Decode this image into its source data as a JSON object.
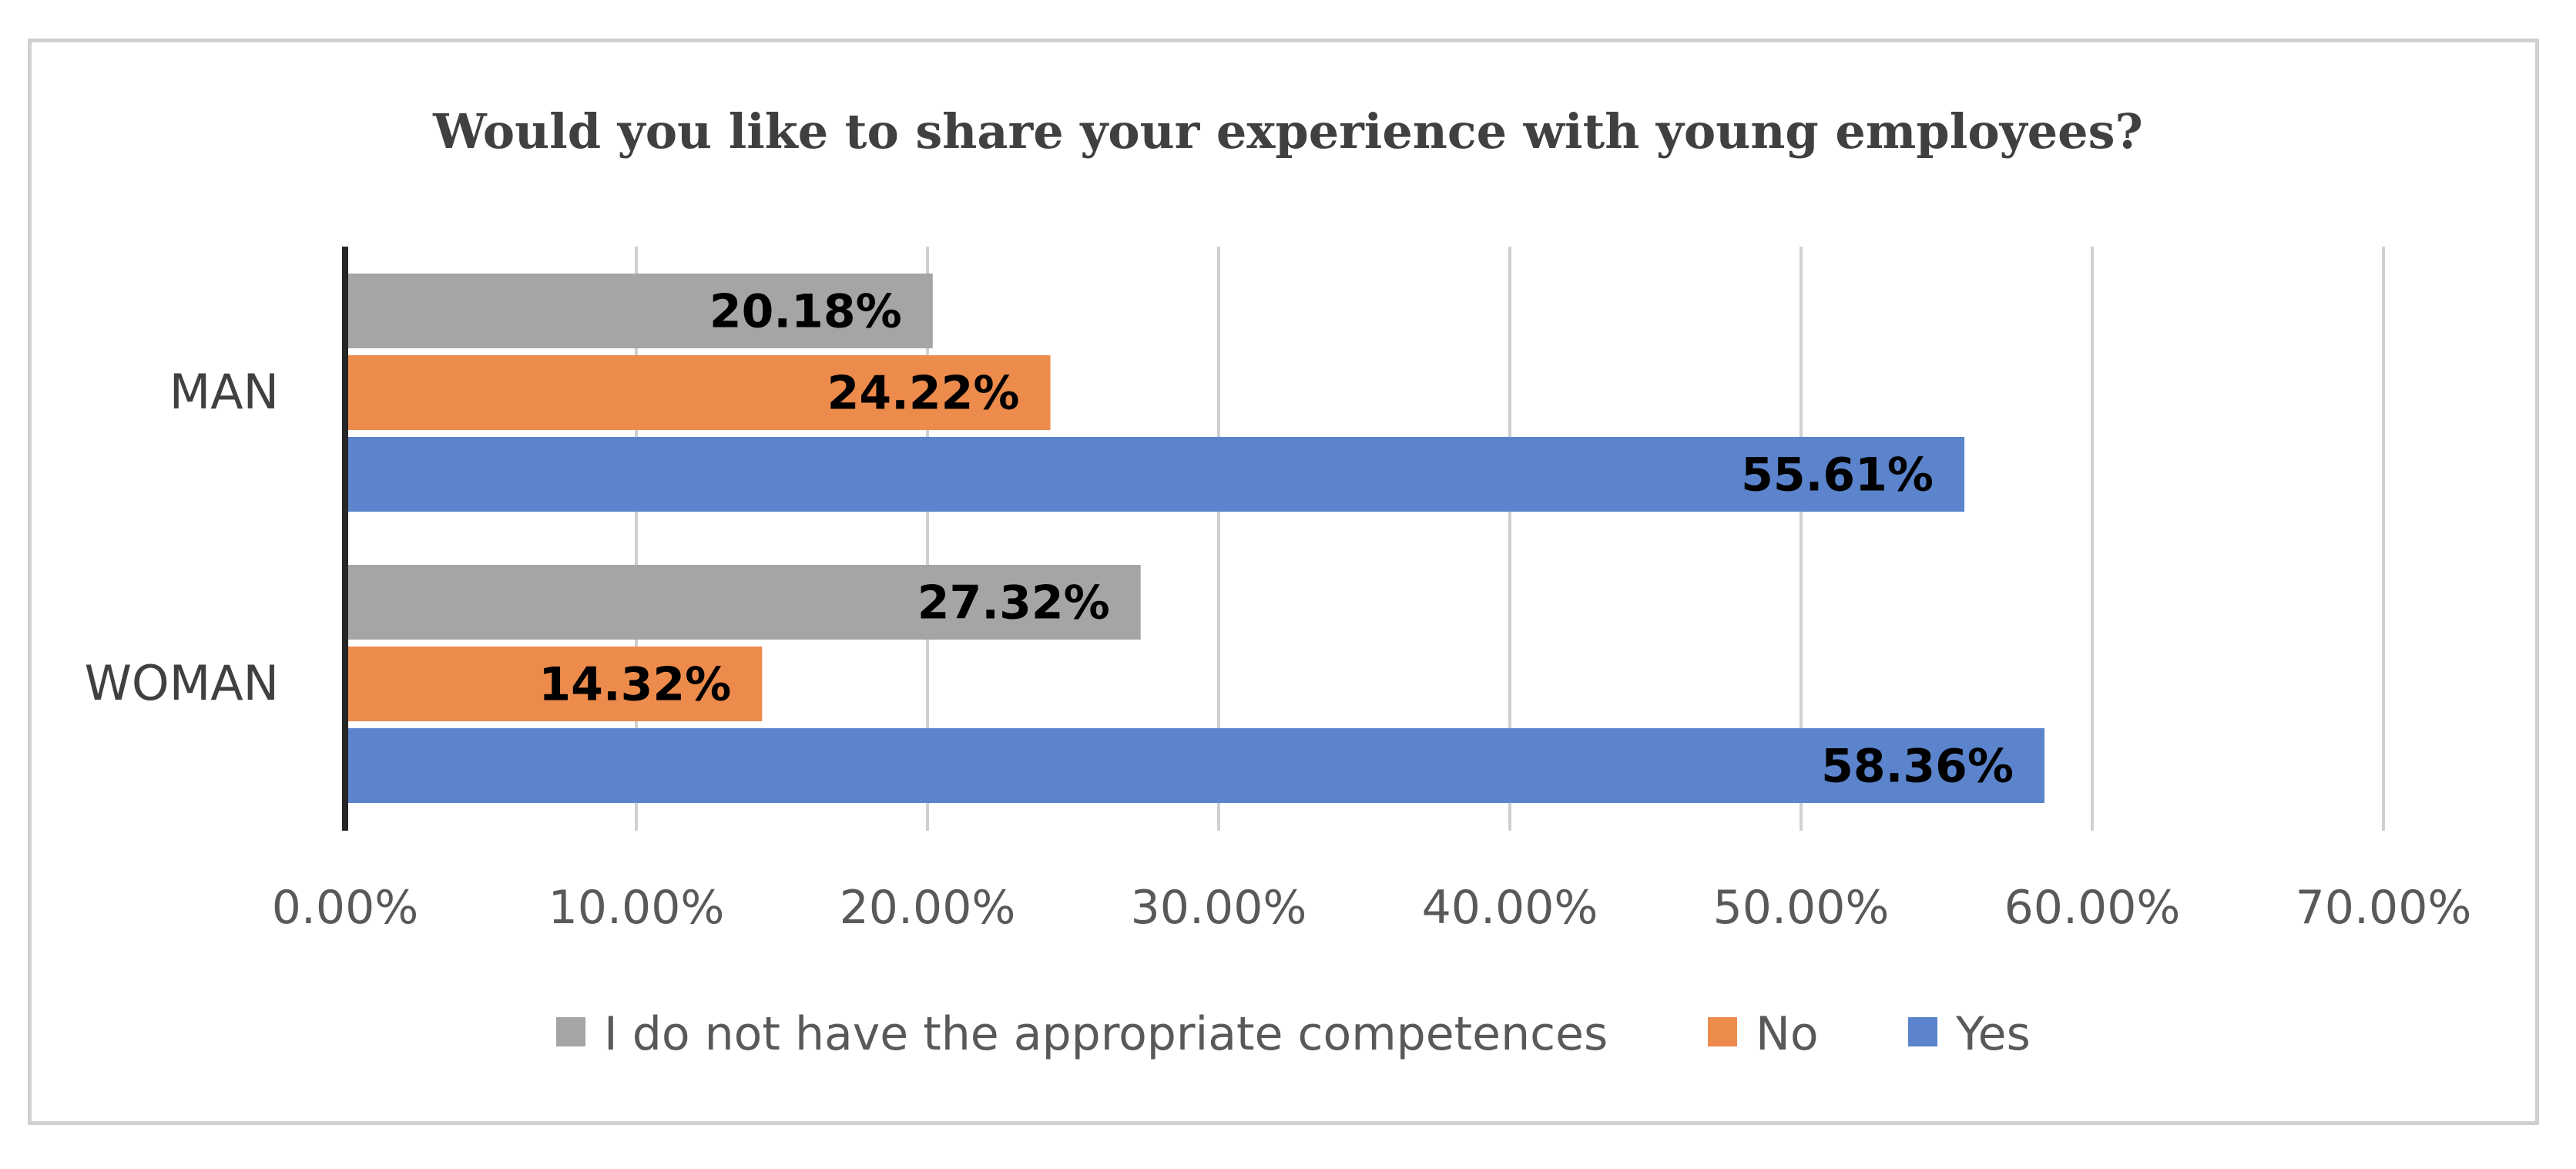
{
  "chart_data": {
    "type": "bar",
    "orientation": "horizontal",
    "title": "Would you like to share your experience with young employees?",
    "categories": [
      "MAN",
      "WOMAN"
    ],
    "series": [
      {
        "name": "I do not have the appropriate competences",
        "color": "#a5a5a5",
        "values": [
          20.18,
          27.32
        ],
        "labels": [
          "20.18%",
          "27.32%"
        ]
      },
      {
        "name": "No",
        "color": "#ed8b4c",
        "values": [
          24.22,
          14.32
        ],
        "labels": [
          "24.22%",
          "14.32%"
        ]
      },
      {
        "name": "Yes",
        "color": "#5b84cc",
        "values": [
          55.61,
          58.36
        ],
        "labels": [
          "55.61%",
          "58.36%"
        ]
      }
    ],
    "xlim": [
      0,
      70
    ],
    "x_ticks": [
      0,
      10,
      20,
      30,
      40,
      50,
      60,
      70
    ],
    "x_tick_labels": [
      "0.00%",
      "10.00%",
      "20.00%",
      "30.00%",
      "40.00%",
      "50.00%",
      "60.00%",
      "70.00%"
    ],
    "xlabel": "",
    "ylabel": "",
    "grid": true,
    "legend_position": "bottom"
  }
}
